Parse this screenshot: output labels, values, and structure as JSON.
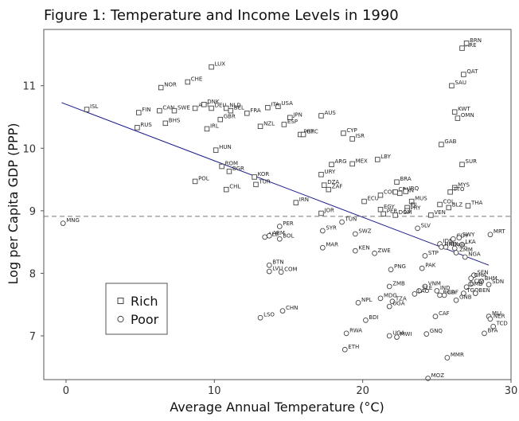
{
  "chart_data": {
    "type": "scatter",
    "title": "Figure 1: Temperature and Income Levels in 1990",
    "xlabel": "Average Annual Temperature (°C)",
    "ylabel": "Log per Capita GDP (PPP)",
    "xlim": [
      -1.5,
      30
    ],
    "ylim": [
      6.3,
      11.9
    ],
    "xticks": [
      0,
      10,
      20,
      30
    ],
    "yticks": [
      7,
      8,
      9,
      10,
      11
    ],
    "grid": false,
    "legend_position": "bottom-left",
    "legend": [
      {
        "label": "Rich",
        "marker": "square"
      },
      {
        "label": "Poor",
        "marker": "circle"
      }
    ],
    "reference_line": {
      "y": 8.91,
      "style": "dashed",
      "color": "#777777"
    },
    "trend_line": {
      "x": [
        -0.3,
        28.5
      ],
      "y": [
        10.73,
        8.13
      ],
      "color": "#1a1a8c"
    },
    "series": [
      {
        "name": "Rich",
        "marker": "square",
        "points": [
          {
            "label": "LUX",
            "x": 9.8,
            "y": 11.3
          },
          {
            "label": "NOR",
            "x": 6.4,
            "y": 10.97
          },
          {
            "label": "CHE",
            "x": 8.2,
            "y": 11.06
          },
          {
            "label": "ISL",
            "x": 1.4,
            "y": 10.62
          },
          {
            "label": "FIN",
            "x": 4.9,
            "y": 10.57
          },
          {
            "label": "CAN",
            "x": 6.3,
            "y": 10.6
          },
          {
            "label": "SWE",
            "x": 7.3,
            "y": 10.6
          },
          {
            "label": "AUT",
            "x": 8.7,
            "y": 10.64
          },
          {
            "label": "DNK",
            "x": 9.3,
            "y": 10.7
          },
          {
            "label": "DEU",
            "x": 9.8,
            "y": 10.64
          },
          {
            "label": "NLD",
            "x": 10.8,
            "y": 10.64
          },
          {
            "label": "BEL",
            "x": 11.1,
            "y": 10.6
          },
          {
            "label": "FRA",
            "x": 12.2,
            "y": 10.56
          },
          {
            "label": "USA",
            "x": 14.3,
            "y": 10.67
          },
          {
            "label": "ITA",
            "x": 13.6,
            "y": 10.65
          },
          {
            "label": "JPN",
            "x": 15.1,
            "y": 10.49
          },
          {
            "label": "ESP",
            "x": 14.7,
            "y": 10.38
          },
          {
            "label": "AUS",
            "x": 17.2,
            "y": 10.52
          },
          {
            "label": "GBR",
            "x": 10.4,
            "y": 10.46
          },
          {
            "label": "IRL",
            "x": 9.5,
            "y": 10.31
          },
          {
            "label": "NZL",
            "x": 13.1,
            "y": 10.35
          },
          {
            "label": "RUS",
            "x": 4.8,
            "y": 10.33
          },
          {
            "label": "BHS",
            "x": 6.7,
            "y": 10.4
          },
          {
            "label": "PRT",
            "x": 15.8,
            "y": 10.22
          },
          {
            "label": "GRC",
            "x": 16.0,
            "y": 10.22
          },
          {
            "label": "CYP",
            "x": 18.7,
            "y": 10.24
          },
          {
            "label": "ISR",
            "x": 19.3,
            "y": 10.15
          },
          {
            "label": "HUN",
            "x": 10.1,
            "y": 9.97
          },
          {
            "label": "ROM",
            "x": 10.5,
            "y": 9.71
          },
          {
            "label": "BGR",
            "x": 11.0,
            "y": 9.63
          },
          {
            "label": "POL",
            "x": 8.7,
            "y": 9.47
          },
          {
            "label": "CHL",
            "x": 10.8,
            "y": 9.34
          },
          {
            "label": "KOR",
            "x": 12.7,
            "y": 9.54
          },
          {
            "label": "TUR",
            "x": 12.8,
            "y": 9.42
          },
          {
            "label": "ARG",
            "x": 17.9,
            "y": 9.74
          },
          {
            "label": "MEX",
            "x": 19.3,
            "y": 9.75
          },
          {
            "label": "URY",
            "x": 17.2,
            "y": 9.58
          },
          {
            "label": "LBY",
            "x": 21.0,
            "y": 9.82
          },
          {
            "label": "DZA",
            "x": 17.4,
            "y": 9.41
          },
          {
            "label": "ZAF",
            "x": 17.7,
            "y": 9.34
          },
          {
            "label": "IRN",
            "x": 15.5,
            "y": 9.13
          },
          {
            "label": "BRA",
            "x": 22.3,
            "y": 9.46
          },
          {
            "label": "ECU",
            "x": 20.1,
            "y": 9.15
          },
          {
            "label": "COL",
            "x": 21.2,
            "y": 9.25
          },
          {
            "label": "CRI",
            "x": 22.2,
            "y": 9.3
          },
          {
            "label": "PAN",
            "x": 22.5,
            "y": 9.28
          },
          {
            "label": "IRQ",
            "x": 22.9,
            "y": 9.31
          },
          {
            "label": "MUS",
            "x": 23.3,
            "y": 9.15
          },
          {
            "label": "FJI",
            "x": 23.0,
            "y": 9.05
          },
          {
            "label": "PRY",
            "x": 23.0,
            "y": 9.0
          },
          {
            "label": "EGY",
            "x": 21.2,
            "y": 9.02
          },
          {
            "label": "PER",
            "x": 21.4,
            "y": 8.95
          },
          {
            "label": "DOM",
            "x": 22.2,
            "y": 8.93
          },
          {
            "label": "JOR",
            "x": 17.2,
            "y": 8.96
          },
          {
            "label": "GAB",
            "x": 25.3,
            "y": 10.06
          },
          {
            "label": "SUR",
            "x": 26.7,
            "y": 9.74
          },
          {
            "label": "MYS",
            "x": 26.2,
            "y": 9.37
          },
          {
            "label": "TTO",
            "x": 25.9,
            "y": 9.3
          },
          {
            "label": "SAU",
            "x": 26.0,
            "y": 11.0
          },
          {
            "label": "QAT",
            "x": 26.8,
            "y": 11.18
          },
          {
            "label": "ARE",
            "x": 26.7,
            "y": 11.6
          },
          {
            "label": "BRN",
            "x": 27.0,
            "y": 11.68
          },
          {
            "label": "KWT",
            "x": 26.2,
            "y": 10.58
          },
          {
            "label": "OMN",
            "x": 26.4,
            "y": 10.48
          },
          {
            "label": "THA",
            "x": 27.1,
            "y": 9.08
          },
          {
            "label": "BLZ",
            "x": 25.8,
            "y": 9.05
          },
          {
            "label": "COL2",
            "x": 25.2,
            "y": 9.1
          },
          {
            "label": "VEN",
            "x": 24.6,
            "y": 8.93
          }
        ]
      },
      {
        "name": "Poor",
        "marker": "circle",
        "points": [
          {
            "label": "MNG",
            "x": -0.2,
            "y": 8.8
          },
          {
            "label": "PER",
            "x": 14.4,
            "y": 8.75
          },
          {
            "label": "ALB",
            "x": 13.4,
            "y": 8.58
          },
          {
            "label": "ARM",
            "x": 13.7,
            "y": 8.6
          },
          {
            "label": "BOL",
            "x": 14.4,
            "y": 8.55
          },
          {
            "label": "SYR",
            "x": 17.3,
            "y": 8.68
          },
          {
            "label": "TUN",
            "x": 18.6,
            "y": 8.82
          },
          {
            "label": "SWZ",
            "x": 19.5,
            "y": 8.63
          },
          {
            "label": "MAR",
            "x": 17.3,
            "y": 8.41
          },
          {
            "label": "KEN",
            "x": 19.5,
            "y": 8.36
          },
          {
            "label": "ZWE",
            "x": 20.8,
            "y": 8.32
          },
          {
            "label": "SLV",
            "x": 23.7,
            "y": 8.72
          },
          {
            "label": "BTN",
            "x": 13.7,
            "y": 8.13
          },
          {
            "label": "LVU",
            "x": 13.7,
            "y": 8.03
          },
          {
            "label": "COM",
            "x": 14.5,
            "y": 8.02
          },
          {
            "label": "PNG",
            "x": 21.9,
            "y": 8.06
          },
          {
            "label": "PAK",
            "x": 24.0,
            "y": 8.08
          },
          {
            "label": "ZMB",
            "x": 21.8,
            "y": 7.79
          },
          {
            "label": "IDN",
            "x": 25.2,
            "y": 8.47
          },
          {
            "label": "GUY",
            "x": 26.1,
            "y": 8.55
          },
          {
            "label": "SWY",
            "x": 26.5,
            "y": 8.57
          },
          {
            "label": "LKA",
            "x": 26.7,
            "y": 8.46
          },
          {
            "label": "PHL",
            "x": 25.6,
            "y": 8.42
          },
          {
            "label": "HND",
            "x": 25.3,
            "y": 8.42
          },
          {
            "label": "NIC",
            "x": 26.2,
            "y": 8.4
          },
          {
            "label": "STP",
            "x": 24.2,
            "y": 8.28
          },
          {
            "label": "NGA",
            "x": 26.9,
            "y": 8.26
          },
          {
            "label": "MRT",
            "x": 28.6,
            "y": 8.62
          },
          {
            "label": "ZMM",
            "x": 26.3,
            "y": 8.33
          },
          {
            "label": "SEN",
            "x": 27.5,
            "y": 7.97
          },
          {
            "label": "GHA",
            "x": 27.3,
            "y": 7.92
          },
          {
            "label": "BHM",
            "x": 28.0,
            "y": 7.87
          },
          {
            "label": "SDN",
            "x": 28.5,
            "y": 7.82
          },
          {
            "label": "CIV",
            "x": 27.3,
            "y": 7.83
          },
          {
            "label": "GMB",
            "x": 27.0,
            "y": 7.78
          },
          {
            "label": "TGO",
            "x": 26.8,
            "y": 7.68
          },
          {
            "label": "BEN",
            "x": 27.6,
            "y": 7.68
          },
          {
            "label": "VNM",
            "x": 24.2,
            "y": 7.79
          },
          {
            "label": "SLE",
            "x": 23.8,
            "y": 7.72
          },
          {
            "label": "IND",
            "x": 25.0,
            "y": 7.72
          },
          {
            "label": "BGD",
            "x": 25.2,
            "y": 7.65
          },
          {
            "label": "CAF",
            "x": 25.5,
            "y": 7.65
          },
          {
            "label": "LAO",
            "x": 23.5,
            "y": 7.67
          },
          {
            "label": "TZA",
            "x": 22.0,
            "y": 7.55
          },
          {
            "label": "NPL",
            "x": 19.7,
            "y": 7.53
          },
          {
            "label": "MDG",
            "x": 21.2,
            "y": 7.6
          },
          {
            "label": "UGA",
            "x": 21.8,
            "y": 7.47
          },
          {
            "label": "GNB",
            "x": 26.3,
            "y": 7.57
          },
          {
            "label": "BDI",
            "x": 20.2,
            "y": 7.25
          },
          {
            "label": "CAF2",
            "x": 24.9,
            "y": 7.31
          },
          {
            "label": "RWA",
            "x": 18.9,
            "y": 7.04
          },
          {
            "label": "UGA2",
            "x": 21.8,
            "y": 7.0
          },
          {
            "label": "MWI",
            "x": 22.3,
            "y": 6.98
          },
          {
            "label": "GNQ",
            "x": 24.3,
            "y": 7.03
          },
          {
            "label": "MLI",
            "x": 28.5,
            "y": 7.31
          },
          {
            "label": "NER",
            "x": 28.6,
            "y": 7.27
          },
          {
            "label": "TCD",
            "x": 28.8,
            "y": 7.15
          },
          {
            "label": "BFA",
            "x": 28.2,
            "y": 7.04
          },
          {
            "label": "MMR",
            "x": 25.7,
            "y": 6.65
          },
          {
            "label": "ETH",
            "x": 18.8,
            "y": 6.78
          },
          {
            "label": "MOZ",
            "x": 24.4,
            "y": 6.32
          },
          {
            "label": "LSO",
            "x": 13.1,
            "y": 7.29
          },
          {
            "label": "CHN",
            "x": 14.6,
            "y": 7.4
          }
        ]
      }
    ]
  }
}
